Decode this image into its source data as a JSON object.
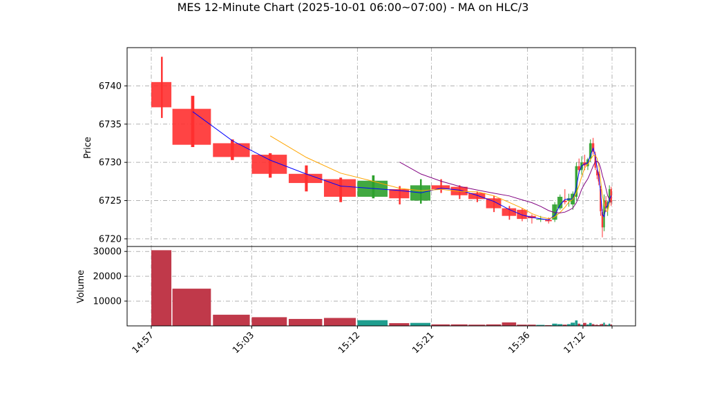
{
  "chart_data": {
    "type": "candlestick",
    "title": "MES 12-Minute Chart (2025-10-01 06:00~07:00) - MA on HLC/3",
    "price_panel": {
      "ylabel": "Price",
      "ylim": [
        6719,
        6745
      ],
      "yticks": [
        6720,
        6725,
        6730,
        6735,
        6740
      ],
      "grid": true
    },
    "volume_panel": {
      "ylabel": "Volume",
      "ylim": [
        0,
        32000
      ],
      "yticks": [
        10000,
        20000,
        30000
      ],
      "yticklabels": [
        "10000",
        "20000",
        "30000"
      ],
      "grid": true
    },
    "xticklabels": [
      "14:57",
      "15:03",
      "15:12",
      "15:21",
      "15:36",
      "17:12"
    ],
    "colors": {
      "up": "#2ca02c",
      "down": "#ff3030",
      "ma_fast": "#0000ff",
      "ma_mid": "#ffa500",
      "ma_slow": "#800080",
      "vol_up": "#1f9e8f",
      "vol_down": "#c0394a",
      "grid": "#b0b0b0"
    },
    "candles": [
      {
        "o": 6740.5,
        "h": 6743.8,
        "l": 6735.8,
        "c": 6737.2,
        "v": 30500
      },
      {
        "o": 6737.0,
        "h": 6738.7,
        "l": 6732.0,
        "c": 6732.3,
        "v": 15000
      },
      {
        "o": 6732.5,
        "h": 6733.0,
        "l": 6730.3,
        "c": 6730.7,
        "v": 4500
      },
      {
        "o": 6731.0,
        "h": 6731.2,
        "l": 6728.0,
        "c": 6728.5,
        "v": 3500
      },
      {
        "o": 6728.5,
        "h": 6729.6,
        "l": 6726.2,
        "c": 6727.3,
        "v": 2800
      },
      {
        "o": 6727.8,
        "h": 6728.0,
        "l": 6724.8,
        "c": 6725.5,
        "v": 3200
      },
      {
        "o": 6725.5,
        "h": 6728.3,
        "l": 6725.3,
        "c": 6727.6,
        "v": 2300
      },
      {
        "o": 6726.5,
        "h": 6726.9,
        "l": 6724.5,
        "c": 6725.3,
        "v": 1100
      },
      {
        "o": 6725.0,
        "h": 6727.8,
        "l": 6724.6,
        "c": 6727.0,
        "v": 1200
      },
      {
        "o": 6727.0,
        "h": 6727.8,
        "l": 6726.0,
        "c": 6726.5,
        "v": 600
      },
      {
        "o": 6726.8,
        "h": 6727.0,
        "l": 6725.2,
        "c": 6725.7,
        "v": 600
      },
      {
        "o": 6726.0,
        "h": 6726.2,
        "l": 6724.8,
        "c": 6725.2,
        "v": 500
      },
      {
        "o": 6725.3,
        "h": 6725.6,
        "l": 6723.5,
        "c": 6724.0,
        "v": 600
      },
      {
        "o": 6724.0,
        "h": 6724.3,
        "l": 6722.5,
        "c": 6723.0,
        "v": 1400
      },
      {
        "o": 6723.8,
        "h": 6724.0,
        "l": 6722.3,
        "c": 6722.6,
        "v": 500
      },
      {
        "o": 6723.0,
        "h": 6723.2,
        "l": 6722.0,
        "c": 6722.7,
        "v": 500
      },
      {
        "o": 6722.5,
        "h": 6723.0,
        "l": 6722.2,
        "c": 6722.6,
        "v": 400
      },
      {
        "o": 6722.5,
        "h": 6722.8,
        "l": 6722.0,
        "c": 6722.3,
        "v": 300
      },
      {
        "o": 6722.5,
        "h": 6724.8,
        "l": 6722.2,
        "c": 6724.5,
        "v": 900
      },
      {
        "o": 6724.0,
        "h": 6725.8,
        "l": 6723.8,
        "c": 6725.5,
        "v": 700
      },
      {
        "o": 6725.0,
        "h": 6726.5,
        "l": 6724.5,
        "c": 6724.8,
        "v": 500
      },
      {
        "o": 6725.0,
        "h": 6725.9,
        "l": 6724.2,
        "c": 6725.3,
        "v": 700
      },
      {
        "o": 6724.5,
        "h": 6726.2,
        "l": 6723.8,
        "c": 6725.9,
        "v": 1300
      },
      {
        "o": 6725.5,
        "h": 6730.0,
        "l": 6725.0,
        "c": 6729.5,
        "v": 2200
      },
      {
        "o": 6729.5,
        "h": 6730.5,
        "l": 6728.5,
        "c": 6729.0,
        "v": 900
      },
      {
        "o": 6729.0,
        "h": 6730.8,
        "l": 6728.4,
        "c": 6730.0,
        "v": 500
      },
      {
        "o": 6730.0,
        "h": 6731.0,
        "l": 6729.0,
        "c": 6729.6,
        "v": 1200
      },
      {
        "o": 6729.5,
        "h": 6730.6,
        "l": 6729.0,
        "c": 6730.4,
        "v": 600
      },
      {
        "o": 6730.5,
        "h": 6733.0,
        "l": 6730.0,
        "c": 6732.5,
        "v": 1200
      },
      {
        "o": 6732.5,
        "h": 6733.2,
        "l": 6731.0,
        "c": 6731.4,
        "v": 700
      },
      {
        "o": 6731.0,
        "h": 6731.4,
        "l": 6729.0,
        "c": 6729.3,
        "v": 400
      },
      {
        "o": 6729.0,
        "h": 6729.6,
        "l": 6727.8,
        "c": 6728.3,
        "v": 500
      },
      {
        "o": 6728.5,
        "h": 6728.8,
        "l": 6727.0,
        "c": 6727.5,
        "v": 300
      },
      {
        "o": 6726.5,
        "h": 6726.9,
        "l": 6723.0,
        "c": 6723.6,
        "v": 700
      },
      {
        "o": 6723.5,
        "h": 6723.9,
        "l": 6720.2,
        "c": 6721.5,
        "v": 800
      },
      {
        "o": 6721.5,
        "h": 6725.8,
        "l": 6721.0,
        "c": 6725.0,
        "v": 1300
      },
      {
        "o": 6725.0,
        "h": 6725.6,
        "l": 6723.5,
        "c": 6724.0,
        "v": 500
      },
      {
        "o": 6724.0,
        "h": 6725.0,
        "l": 6723.0,
        "c": 6724.8,
        "v": 400
      },
      {
        "o": 6724.8,
        "h": 6727.0,
        "l": 6724.5,
        "c": 6726.5,
        "v": 900
      },
      {
        "o": 6726.5,
        "h": 6726.8,
        "l": 6724.3,
        "c": 6724.8,
        "v": 600
      }
    ]
  }
}
